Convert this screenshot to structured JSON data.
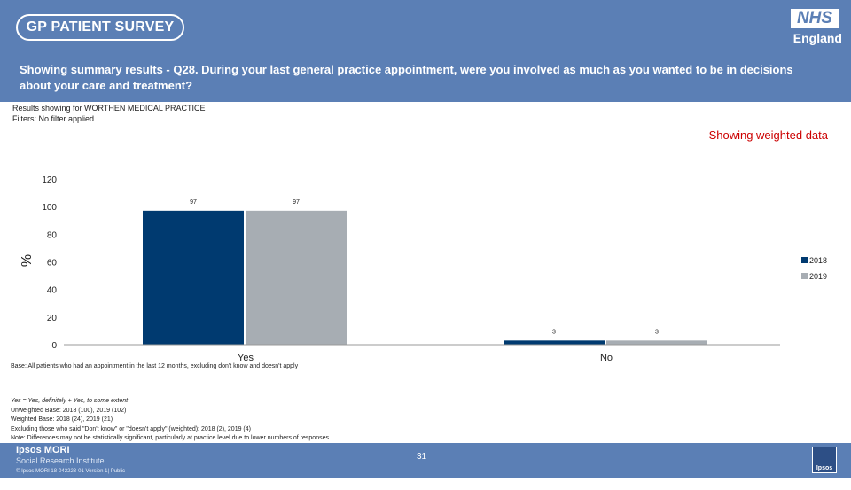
{
  "header": {
    "survey_title": "GP PATIENT SURVEY",
    "nhs_logo": "NHS",
    "nhs_region": "England",
    "question": "Showing summary results - Q28.  During your last general practice appointment, were you involved as much as you wanted to be in decisions about your care and treatment?"
  },
  "meta": {
    "results_for": "Results showing for WORTHEN MEDICAL PRACTICE",
    "filters": "Filters: No filter applied",
    "weighted_label": "Showing weighted data"
  },
  "chart_data": {
    "type": "bar",
    "categories": [
      "Yes",
      "No"
    ],
    "series": [
      {
        "name": "2018",
        "values": [
          97,
          3
        ],
        "color": "#003a70"
      },
      {
        "name": "2019",
        "values": [
          97,
          3
        ],
        "color": "#a7adb3"
      }
    ],
    "ylabel": "%",
    "ylim": [
      0,
      120
    ],
    "yticks": [
      0,
      20,
      40,
      60,
      80,
      100,
      120
    ],
    "legend_position": "right"
  },
  "notes": {
    "base": "Base: All patients who had an appointment in the last 12 months, excluding don't know and doesn't apply",
    "definition": "Yes = Yes, definitely + Yes, to some extent",
    "unweighted": "Unweighted Base: 2018 (100), 2019 (102)",
    "weighted": "Weighted Base: 2018 (24), 2019 (21)",
    "excluding": "Excluding those who said \"Don't know\" or \"doesn't apply\" (weighted):  2018 (2), 2019 (4)",
    "note": "Note: Differences may not be statistically significant, particularly at practice level due to lower numbers of responses."
  },
  "footer": {
    "ipsos_name": "Ipsos MORI",
    "ipsos_sub": "Social Research Institute",
    "copyright": "© Ipsos MORI        18-042223-01 Version 1| Public",
    "page_number": "31",
    "ipsos_logo": "Ipsos"
  }
}
